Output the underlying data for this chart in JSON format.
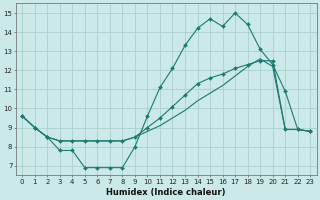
{
  "title": "",
  "xlabel": "Humidex (Indice chaleur)",
  "ylabel": "",
  "xlim": [
    -0.5,
    23.5
  ],
  "ylim": [
    6.5,
    15.5
  ],
  "yticks": [
    7,
    8,
    9,
    10,
    11,
    12,
    13,
    14,
    15
  ],
  "xticks": [
    0,
    1,
    2,
    3,
    4,
    5,
    6,
    7,
    8,
    9,
    10,
    11,
    12,
    13,
    14,
    15,
    16,
    17,
    18,
    19,
    20,
    21,
    22,
    23
  ],
  "background_color": "#cce9e9",
  "grid_color": "#aacfcf",
  "line_color": "#1a7a6e",
  "line1_x": [
    0,
    1,
    2,
    3,
    4,
    5,
    6,
    7,
    8,
    9,
    10,
    11,
    12,
    13,
    14,
    15,
    16,
    17,
    18,
    19,
    20,
    21,
    22,
    23
  ],
  "line1_y": [
    9.6,
    9.0,
    8.5,
    7.8,
    7.8,
    6.9,
    6.9,
    6.9,
    6.9,
    8.0,
    9.6,
    11.1,
    12.1,
    13.3,
    14.2,
    14.7,
    14.3,
    15.0,
    14.4,
    13.1,
    12.3,
    10.9,
    8.9,
    8.8
  ],
  "line2_x": [
    0,
    1,
    2,
    3,
    4,
    5,
    6,
    7,
    8,
    9,
    10,
    11,
    12,
    13,
    14,
    15,
    16,
    17,
    18,
    19,
    20,
    21,
    22,
    23
  ],
  "line2_y": [
    9.6,
    9.0,
    8.5,
    8.3,
    8.3,
    8.3,
    8.3,
    8.3,
    8.3,
    8.5,
    9.0,
    9.5,
    10.1,
    10.7,
    11.3,
    11.6,
    11.8,
    12.1,
    12.3,
    12.5,
    12.5,
    8.9,
    8.9,
    8.8
  ],
  "line3_x": [
    0,
    1,
    2,
    3,
    4,
    5,
    6,
    7,
    8,
    9,
    10,
    11,
    12,
    13,
    14,
    15,
    16,
    17,
    18,
    19,
    20,
    21,
    22,
    23
  ],
  "line3_y": [
    9.6,
    9.0,
    8.5,
    8.3,
    8.3,
    8.3,
    8.3,
    8.3,
    8.3,
    8.5,
    8.8,
    9.1,
    9.5,
    9.9,
    10.4,
    10.8,
    11.2,
    11.7,
    12.2,
    12.6,
    12.2,
    8.9,
    8.9,
    8.8
  ],
  "xlabel_fontsize": 6,
  "tick_fontsize": 5,
  "linewidth": 0.8,
  "markersize": 2.0
}
